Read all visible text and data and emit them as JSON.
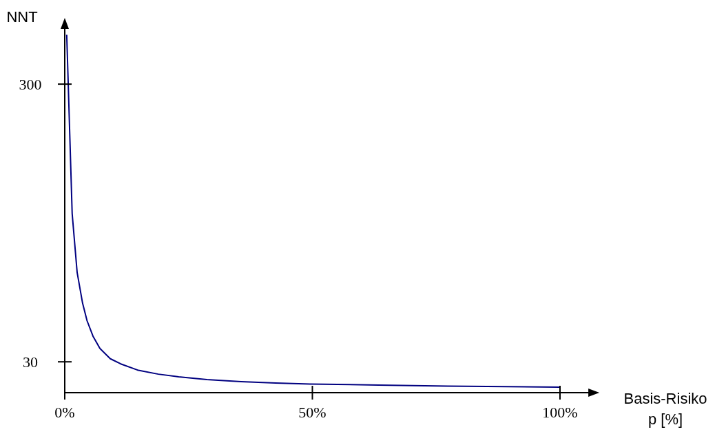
{
  "chart_data": {
    "type": "line",
    "xlabel": "Basis-Risiko\np [%]",
    "ylabel": "NNT",
    "xlim": [
      0,
      106
    ],
    "ylim": [
      0,
      355
    ],
    "xticks": [
      {
        "value": 0,
        "label": "0%"
      },
      {
        "value": 50,
        "label": "50%"
      },
      {
        "value": 100,
        "label": "100%"
      }
    ],
    "yticks": [
      30,
      300
    ],
    "grid": false,
    "marker": "none",
    "line_style": "solid",
    "series": [
      {
        "color": "#000080",
        "x": [
          0.4,
          1.5,
          2.5,
          3.6,
          4.5,
          5.7,
          7.1,
          9.2,
          11.3,
          14.7,
          18.9,
          23,
          28.7,
          35.6,
          42.6,
          49.5,
          63.4,
          77.3,
          100
        ],
        "values": [
          348,
          174,
          117,
          87,
          70,
          55,
          43,
          33,
          28,
          22,
          18,
          15.4,
          12.7,
          10.7,
          9.4,
          8.4,
          7.4,
          6.4,
          5.3
        ]
      }
    ]
  }
}
